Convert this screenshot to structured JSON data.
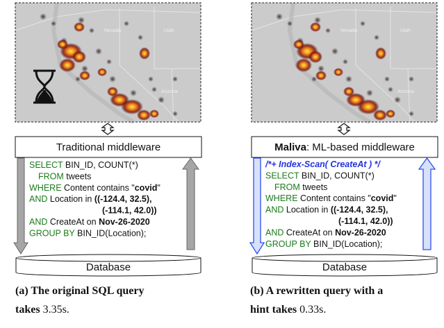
{
  "panels": [
    {
      "map_labels": [
        "Nevada",
        "Utah",
        "Arizona"
      ],
      "middleware": [
        "Traditional middleware"
      ],
      "sql": [
        [
          "SELECT",
          " BIN_ID, COUNT(*)"
        ],
        [
          "FROM",
          " tweets"
        ],
        [
          "WHERE",
          " Content contains \"",
          "covid",
          "\""
        ],
        [
          "AND",
          " Location in ",
          "((-124.4, 32.5),"
        ],
        [
          "(-114.1, 42.0))"
        ],
        [
          "AND",
          " CreateAt on ",
          "Nov-26-2020"
        ],
        [
          "GROUP BY",
          " BIN_ID(Location);"
        ]
      ],
      "database": "Database",
      "caption": [
        "(a) The original SQL query",
        "takes",
        "3.35s",
        "."
      ]
    },
    {
      "map_labels": [
        "Nevada",
        "Utah",
        "Arizona"
      ],
      "middleware": [
        "Maliva",
        ": ML-based middleware"
      ],
      "sql": [
        [
          "/*+ Index-Scan( CreateAt ) */"
        ],
        [
          "SELECT",
          " BIN_ID, COUNT(*)"
        ],
        [
          "FROM",
          " tweets"
        ],
        [
          "WHERE",
          " Content contains \"",
          "covid",
          "\""
        ],
        [
          "AND",
          " Location in ",
          "((-124.4, 32.5),"
        ],
        [
          "(-114.1, 42.0))"
        ],
        [
          "AND",
          " CreateAt on ",
          "Nov-26-2020"
        ],
        [
          "GROUP BY",
          " BIN_ID(Location);"
        ]
      ],
      "database": "Database",
      "caption": [
        "(b) A rewritten query with a",
        "hint takes",
        "0.33s",
        "."
      ]
    }
  ]
}
